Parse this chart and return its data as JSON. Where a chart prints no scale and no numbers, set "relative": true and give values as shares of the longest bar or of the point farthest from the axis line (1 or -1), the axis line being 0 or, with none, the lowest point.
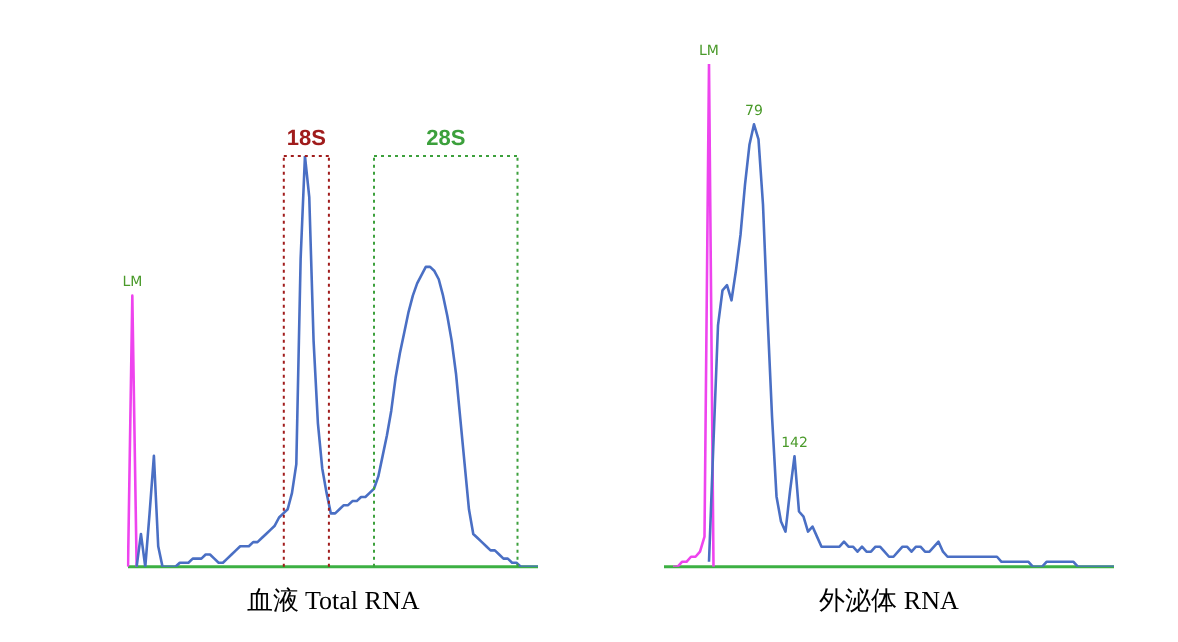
{
  "chart_data": [
    {
      "type": "line",
      "title": "血液 Total RNA",
      "relative": true,
      "categories": [
        null,
        null,
        null,
        null,
        null,
        null,
        null,
        null,
        null,
        null,
        null,
        null,
        null,
        null,
        null,
        null,
        null,
        null,
        null,
        null,
        null,
        null,
        null,
        null,
        null,
        null,
        null,
        null,
        null,
        null,
        null,
        null,
        null,
        null,
        null,
        null,
        null,
        null,
        null,
        null,
        null,
        null,
        null,
        null,
        null,
        null,
        null,
        null,
        null,
        null,
        null,
        null,
        null,
        null,
        null,
        null,
        null,
        null,
        null,
        null,
        null,
        null,
        null,
        null,
        null,
        null,
        null,
        null,
        null,
        null,
        null,
        null,
        null,
        null,
        null,
        null,
        null,
        null,
        null,
        null,
        null,
        null,
        null,
        null,
        null,
        null,
        null,
        null,
        null,
        null,
        null,
        null,
        null,
        null,
        null,
        null
      ],
      "series": [
        {
          "color": "#4a6fc4",
          "values": [
            null,
            null,
            0,
            0.08,
            0,
            0.13,
            0.27,
            0.05,
            0,
            0,
            0,
            0,
            0.01,
            0.01,
            0.01,
            0.02,
            0.02,
            0.02,
            0.03,
            0.03,
            0.02,
            0.01,
            0.01,
            0.02,
            0.03,
            0.04,
            0.05,
            0.05,
            0.05,
            0.06,
            0.06,
            0.07,
            0.08,
            0.09,
            0.1,
            0.12,
            0.13,
            0.14,
            0.18,
            0.25,
            0.75,
            1,
            0.9,
            0.55,
            0.35,
            0.24,
            0.18,
            0.13,
            0.13,
            0.14,
            0.15,
            0.15,
            0.16,
            0.16,
            0.17,
            0.17,
            0.18,
            0.19,
            0.22,
            0.27,
            0.32,
            0.38,
            0.46,
            0.52,
            0.57,
            0.62,
            0.66,
            0.69,
            0.71,
            0.73,
            0.73,
            0.72,
            0.7,
            0.66,
            0.61,
            0.55,
            0.47,
            0.36,
            0.25,
            0.14,
            0.08,
            0.07,
            0.06,
            0.05,
            0.04,
            0.04,
            0.03,
            0.02,
            0.02,
            0.01,
            0.01,
            0,
            0,
            0,
            0,
            0
          ]
        },
        {
          "color": "#ee44ee",
          "values": [
            0,
            0.66,
            0,
            null,
            null,
            null,
            null,
            null,
            null,
            null,
            null,
            null,
            null,
            null,
            null,
            null,
            null,
            null,
            null,
            null,
            null,
            null,
            null,
            null,
            null,
            null,
            null,
            null,
            null,
            null,
            null,
            null,
            null,
            null,
            null,
            null,
            null,
            null,
            null,
            null,
            null,
            null,
            null,
            null,
            null,
            null,
            null,
            null,
            null,
            null,
            null,
            null,
            null,
            null,
            null,
            null,
            null,
            null,
            null,
            null,
            null,
            null,
            null,
            null,
            null,
            null,
            null,
            null,
            null,
            null,
            null,
            null,
            null,
            null,
            null,
            null,
            null,
            null,
            null,
            null,
            null,
            null,
            null,
            null,
            null,
            null,
            null,
            null,
            null,
            null,
            null,
            null,
            null,
            null,
            null,
            null
          ]
        }
      ],
      "ref_lines": [
        {
          "axis": "y",
          "value": 0,
          "color": "#3cb043"
        }
      ],
      "annotations": [
        "18S",
        "28S",
        {
          "text": "LM",
          "y": 0.66
        }
      ]
    },
    {
      "type": "line",
      "title": "外泌体 RNA",
      "relative": true,
      "categories": [
        null,
        null,
        null,
        null,
        null,
        null,
        null,
        null,
        null,
        null,
        null,
        null,
        null,
        null,
        null,
        null,
        null,
        null,
        null,
        null,
        null,
        null,
        null,
        null,
        null,
        null,
        null,
        null,
        null,
        null,
        null,
        null,
        null,
        null,
        null,
        null,
        null,
        null,
        null,
        null,
        null,
        null,
        null,
        null,
        null,
        null,
        null,
        null,
        null,
        null,
        null,
        null,
        null,
        null,
        null,
        null,
        null,
        null,
        null,
        null,
        null,
        null,
        null,
        null,
        null,
        null,
        null,
        null,
        null,
        null,
        null,
        null,
        null,
        null,
        null,
        null,
        null,
        null,
        null,
        null,
        null,
        null,
        null,
        null,
        null,
        null,
        null,
        null,
        null,
        null,
        null,
        null,
        null,
        null,
        null,
        null,
        null,
        null,
        null,
        null,
        null
      ],
      "series": [
        {
          "color": "#4a6fc4",
          "values": [
            null,
            null,
            null,
            null,
            null,
            null,
            null,
            null,
            null,
            null,
            0.01,
            0.25,
            0.48,
            0.55,
            0.56,
            0.53,
            0.59,
            0.66,
            0.76,
            0.84,
            0.88,
            0.85,
            0.72,
            0.5,
            0.3,
            0.14,
            0.09,
            0.07,
            0.15,
            0.22,
            0.11,
            0.1,
            0.07,
            0.08,
            0.06,
            0.04,
            0.04,
            0.04,
            0.04,
            0.04,
            0.05,
            0.04,
            0.04,
            0.03,
            0.04,
            0.03,
            0.03,
            0.04,
            0.04,
            0.03,
            0.02,
            0.02,
            0.03,
            0.04,
            0.04,
            0.03,
            0.04,
            0.04,
            0.03,
            0.03,
            0.04,
            0.05,
            0.03,
            0.02,
            0.02,
            0.02,
            0.02,
            0.02,
            0.02,
            0.02,
            0.02,
            0.02,
            0.02,
            0.02,
            0.02,
            0.01,
            0.01,
            0.01,
            0.01,
            0.01,
            0.01,
            0.01,
            0,
            0,
            0,
            0.01,
            0.01,
            0.01,
            0.01,
            0.01,
            0.01,
            0.01,
            0,
            0,
            0,
            0,
            0,
            0,
            0,
            0,
            0
          ]
        },
        {
          "color": "#ee44ee",
          "values": [
            null,
            null,
            0,
            0,
            0.01,
            0.01,
            0.02,
            0.02,
            0.03,
            0.06,
            1,
            0,
            null,
            null,
            null,
            null,
            null,
            null,
            null,
            null,
            null,
            null,
            null,
            null,
            null,
            null,
            null,
            null,
            null,
            null,
            null,
            null,
            null,
            null,
            null,
            null,
            null,
            null,
            null,
            null,
            null,
            null,
            null,
            null,
            null,
            null,
            null,
            null,
            null,
            null,
            null,
            null,
            null,
            null,
            null,
            null,
            null,
            null,
            null,
            null,
            null,
            null,
            null,
            null,
            null,
            null,
            null,
            null,
            null,
            null,
            null,
            null,
            null,
            null,
            null,
            null,
            null,
            null,
            null,
            null,
            null,
            null,
            null,
            null,
            null,
            null,
            null,
            null,
            null,
            null,
            null,
            null,
            null,
            null,
            null,
            null,
            null,
            null,
            null,
            null,
            null
          ]
        }
      ],
      "ref_lines": [
        {
          "axis": "y",
          "value": 0,
          "color": "#3cb043"
        }
      ],
      "annotations": [
        {
          "text": "LM",
          "y": 1
        },
        {
          "text": "79",
          "y": 0.88
        },
        {
          "text": "142",
          "y": 0.22
        }
      ]
    }
  ]
}
